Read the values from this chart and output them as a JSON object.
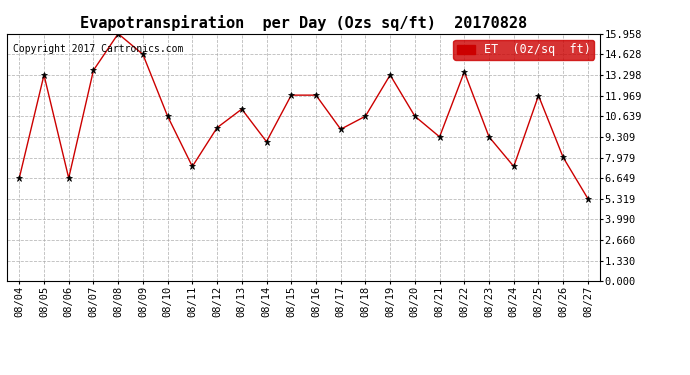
{
  "title": "Evapotranspiration  per Day (Ozs sq/ft)  20170828",
  "copyright": "Copyright 2017 Cartronics.com",
  "legend_label": "ET  (0z/sq  ft)",
  "dates": [
    "08/04",
    "08/05",
    "08/06",
    "08/07",
    "08/08",
    "08/09",
    "08/10",
    "08/11",
    "08/12",
    "08/13",
    "08/14",
    "08/15",
    "08/16",
    "08/17",
    "08/18",
    "08/19",
    "08/20",
    "08/21",
    "08/22",
    "08/23",
    "08/24",
    "08/25",
    "08/26",
    "08/27"
  ],
  "values": [
    6.65,
    13.3,
    6.65,
    13.6,
    15.96,
    14.63,
    10.64,
    7.4,
    9.9,
    11.1,
    9.0,
    12.0,
    12.0,
    9.8,
    10.64,
    13.3,
    10.64,
    9.31,
    13.5,
    9.31,
    7.4,
    11.97,
    7.98,
    5.32
  ],
  "ylim": [
    0,
    15.958
  ],
  "yticks": [
    0.0,
    1.33,
    2.66,
    3.99,
    5.319,
    6.649,
    7.979,
    9.309,
    10.639,
    11.969,
    13.298,
    14.628,
    15.958
  ],
  "line_color": "#cc0000",
  "marker_color": "#000000",
  "bg_color": "#ffffff",
  "plot_bg_color": "#ffffff",
  "grid_color": "#aaaaaa",
  "legend_bg": "#cc0000",
  "legend_text_color": "#ffffff",
  "title_fontsize": 11,
  "copyright_fontsize": 7,
  "tick_fontsize": 7.5,
  "legend_fontsize": 8.5
}
